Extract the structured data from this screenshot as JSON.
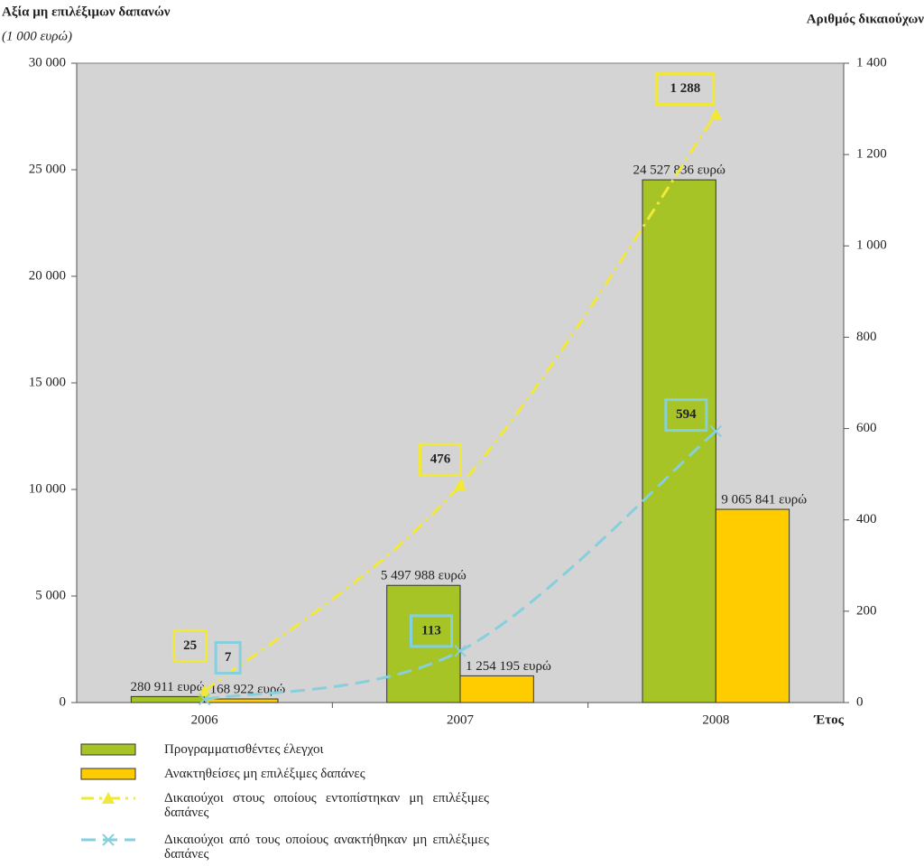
{
  "chart_data": {
    "type": "bar-line",
    "y_title": "Αξία μη επιλέξιμων δαπανών",
    "y_subtitle": "(1 000 ευρώ)",
    "y2_title": "Αριθμός δικαιούχων",
    "x_title": "Έτος",
    "categories": [
      "2006",
      "2007",
      "2008"
    ],
    "ylim": [
      0,
      30000
    ],
    "yticks": [
      0,
      {
        "value": 5000,
        "label": "5 000"
      },
      {
        "value": 10000,
        "label": "10 000"
      },
      {
        "value": 15000,
        "label": "15 000"
      },
      {
        "value": 20000,
        "label": "20 000"
      },
      {
        "value": 25000,
        "label": "25 000"
      },
      {
        "value": 30000,
        "label": "30 000"
      }
    ],
    "y2lim": [
      0,
      1400
    ],
    "y2ticks": [
      0,
      200,
      400,
      600,
      800,
      {
        "value": 1000,
        "label": "1 000"
      },
      {
        "value": 1200,
        "label": "1 200"
      },
      {
        "value": 1400,
        "label": "1 400"
      }
    ],
    "series": [
      {
        "name": "Προγραμματισθέντες έλεγχοι",
        "kind": "bar",
        "color": "#a6c426",
        "values": [
          280.911,
          5497.988,
          24527.836
        ],
        "value_labels": [
          "280 911 ευρώ",
          "5 497 988 ευρώ",
          "24 527 836 ευρώ"
        ]
      },
      {
        "name": "Ανακτηθείσες μη επιλέξιμες δαπάνες",
        "kind": "bar",
        "color": "#ffcc00",
        "values": [
          168.922,
          1254.195,
          9065.841
        ],
        "value_labels": [
          "168 922 ευρώ",
          "1 254 195 ευρώ",
          "9 065 841 ευρώ"
        ]
      },
      {
        "name": "Δικαιούχοι στους οποίους εντοπίστηκαν μη επιλέξιμες δαπάνες",
        "kind": "line",
        "axis": "y2",
        "marker": "triangle",
        "color": "#f2e836",
        "values": [
          25,
          476,
          1288
        ],
        "value_labels": [
          "25",
          "476",
          "1 288"
        ]
      },
      {
        "name": "Δικαιούχοι από τους οποίους ανακτήθηκαν μη επιλέξιμες δαπάνες",
        "kind": "line",
        "axis": "y2",
        "marker": "x",
        "color": "#86cfdc",
        "values": [
          7,
          113,
          594
        ]
      }
    ]
  }
}
